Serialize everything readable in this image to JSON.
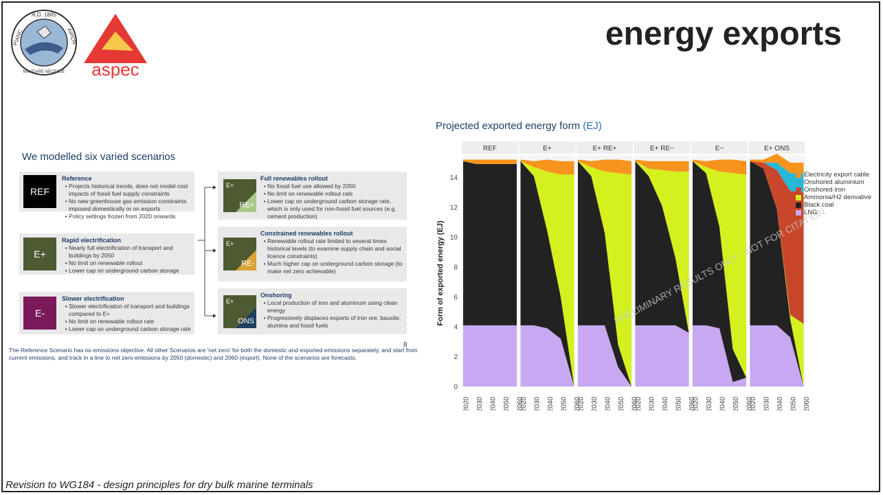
{
  "page": {
    "title": "energy exports",
    "footer": "Revision to WG184 - design principles for dry bulk marine terminals"
  },
  "logos": {
    "pianc_top": "A.D. 1885",
    "pianc_left": "PIANC",
    "pianc_right": "AIPCN",
    "pianc_bottom": "NAVIGARE NECESSE",
    "aspec": "aspec"
  },
  "slide": {
    "title": "We modelled six varied scenarios",
    "scenarios": [
      {
        "code": "REF",
        "heading": "Reference",
        "color": "#000000",
        "bullets": [
          "Projects historical trends, does not model cost impacts of fossil fuel supply constraints",
          "No new greenhouse gas emission constraints imposed domestically or on exports",
          "Policy settings frozen from 2020 onwards"
        ]
      },
      {
        "code": "E+",
        "heading": "Rapid electrification",
        "color": "#4d5a32",
        "bullets": [
          "Nearly full electrification of transport and buildings by 2050",
          "No limit on renewable rollout",
          "Lower cap on underground carbon storage"
        ]
      },
      {
        "code": "E-",
        "heading": "Slower electrification",
        "color": "#7a1a5a",
        "bullets": [
          "Slower electrification of transport and buildings compared to E+",
          "No limit on renewable rollout rate",
          "Lower cap on underground carbon storage rate"
        ]
      },
      {
        "code_top": "E+",
        "code": "RE+",
        "heading": "Full renewables rollout",
        "color": "#4d5a32",
        "accent": "#a9c98a",
        "bullets": [
          "No fossil fuel use allowed by 2050",
          "No limit on renewable rollout rate",
          "Lower cap on underground carbon storage rate, which is only used for non-fossil fuel sources (e.g. cement production)"
        ]
      },
      {
        "code_top": "E+",
        "code": "RE-",
        "heading": "Constrained renewables rollout",
        "color": "#4d5a32",
        "accent": "#d8a236",
        "bullets": [
          "Renewable rollout rate limited to several times historical levels (to examine supply chain and social licence constraints)",
          "Much higher cap on underground carbon storage (to make net zero achievable)"
        ]
      },
      {
        "code_top": "E+",
        "code": "ONS",
        "heading": "Onshoring",
        "color": "#4d5a32",
        "accent": "#1f3f5f",
        "bullets": [
          "Local production of iron and aluminum using clean energy",
          "Progressively displaces exports of iron ore, bauxite, alumina and fossil fuels"
        ]
      }
    ],
    "footnote": "The Reference Scenario has no emissions objective. All other Scenarios are 'net zero' for both the domestic and exported emissions separately, and start from current emissions, and track in a line to net zero emissions by 2050 (domestic) and 2060 (export). None of the scenarios are forecasts.",
    "page_number": "8"
  },
  "chart_title": "Projected exported energy form",
  "chart_unit": "(EJ)",
  "chart_data": {
    "type": "area",
    "ylabel": "Form of exported energy (EJ)",
    "ylim": [
      0,
      15.5
    ],
    "yticks": [
      0,
      2,
      4,
      6,
      8,
      10,
      12,
      14
    ],
    "x": [
      2020,
      2030,
      2040,
      2050,
      2060
    ],
    "xtick_labels": [
      "2020",
      "2030",
      "2040",
      "2050",
      "2060"
    ],
    "legend_position": "right",
    "watermark": "PRELIMINARY RESULTS ONLY - NOT FOR CITATION",
    "series_names": [
      "Electricity export cable",
      "Onshored aluminium",
      "Onshored iron",
      "Ammonia/H2 derivative",
      "Black coal",
      "LNG"
    ],
    "colors": [
      "#f7941d",
      "#27b8d8",
      "#c8472a",
      "#d4f01e",
      "#222222",
      "#c8a8f0"
    ],
    "panels": [
      {
        "name": "REF",
        "series": {
          "LNG": [
            4.1,
            4.1,
            4.1,
            4.1,
            4.1
          ],
          "Black coal": [
            11.0,
            10.8,
            10.8,
            10.8,
            10.8
          ],
          "Ammonia/H2 derivative": [
            0,
            0,
            0,
            0,
            0
          ],
          "Onshored iron": [
            0,
            0,
            0,
            0,
            0
          ],
          "Onshored aluminium": [
            0,
            0,
            0,
            0,
            0
          ],
          "Electricity export cable": [
            0.1,
            0.3,
            0.3,
            0.3,
            0.3
          ]
        }
      },
      {
        "name": "E+",
        "series": {
          "LNG": [
            4.1,
            4.1,
            3.9,
            3.2,
            0
          ],
          "Black coal": [
            11.0,
            10.0,
            6.5,
            2.8,
            0
          ],
          "Ammonia/H2 derivative": [
            0,
            0.6,
            4.0,
            8.2,
            14.2
          ],
          "Onshored iron": [
            0,
            0,
            0,
            0,
            0
          ],
          "Onshored aluminium": [
            0,
            0,
            0,
            0,
            0
          ],
          "Electricity export cable": [
            0.1,
            0.4,
            0.8,
            0.9,
            0.9
          ]
        }
      },
      {
        "name": "E+ RE+",
        "series": {
          "LNG": [
            4.1,
            4.1,
            4.1,
            1.3,
            0
          ],
          "Black coal": [
            11.0,
            10.0,
            6.2,
            1.5,
            0
          ],
          "Ammonia/H2 derivative": [
            0,
            0.6,
            4.1,
            11.5,
            14.2
          ],
          "Onshored iron": [
            0,
            0,
            0,
            0,
            0
          ],
          "Onshored aluminium": [
            0,
            0,
            0,
            0,
            0
          ],
          "Electricity export cable": [
            0.1,
            0.4,
            0.8,
            0.9,
            0.9
          ]
        }
      },
      {
        "name": "E+ RE−",
        "series": {
          "LNG": [
            4.1,
            4.1,
            4.1,
            4.1,
            3.6
          ],
          "Black coal": [
            11.0,
            10.0,
            8.0,
            4.5,
            0
          ],
          "Ammonia/H2 derivative": [
            0,
            0.5,
            2.4,
            5.8,
            10.8
          ],
          "Onshored iron": [
            0,
            0,
            0,
            0,
            0
          ],
          "Onshored aluminium": [
            0,
            0,
            0,
            0,
            0
          ],
          "Electricity export cable": [
            0.1,
            0.5,
            0.6,
            0.7,
            0.7
          ]
        }
      },
      {
        "name": "E−",
        "series": {
          "LNG": [
            4.1,
            4.1,
            3.9,
            0.3,
            0.6
          ],
          "Black coal": [
            11.0,
            10.2,
            6.8,
            2.2,
            0
          ],
          "Ammonia/H2 derivative": [
            0,
            0.4,
            3.7,
            11.8,
            13.6
          ],
          "Onshored iron": [
            0,
            0,
            0,
            0,
            0
          ],
          "Onshored aluminium": [
            0,
            0,
            0,
            0,
            0
          ],
          "Electricity export cable": [
            0.1,
            0.4,
            0.8,
            0.9,
            0.9
          ]
        }
      },
      {
        "name": "E+ ONS",
        "series": {
          "LNG": [
            4.1,
            4.1,
            4.1,
            3.3,
            0
          ],
          "Black coal": [
            11.0,
            10.5,
            7.8,
            1.2,
            0
          ],
          "Ammonia/H2 derivative": [
            0,
            0,
            0,
            0.3,
            4.2
          ],
          "Onshored iron": [
            0,
            0.4,
            2.6,
            8.3,
            8.8
          ],
          "Onshored aluminium": [
            0,
            0,
            0.5,
            1.2,
            1.3
          ],
          "Electricity export cable": [
            0.1,
            0.2,
            0.6,
            0.7,
            0.7
          ]
        }
      }
    ]
  }
}
